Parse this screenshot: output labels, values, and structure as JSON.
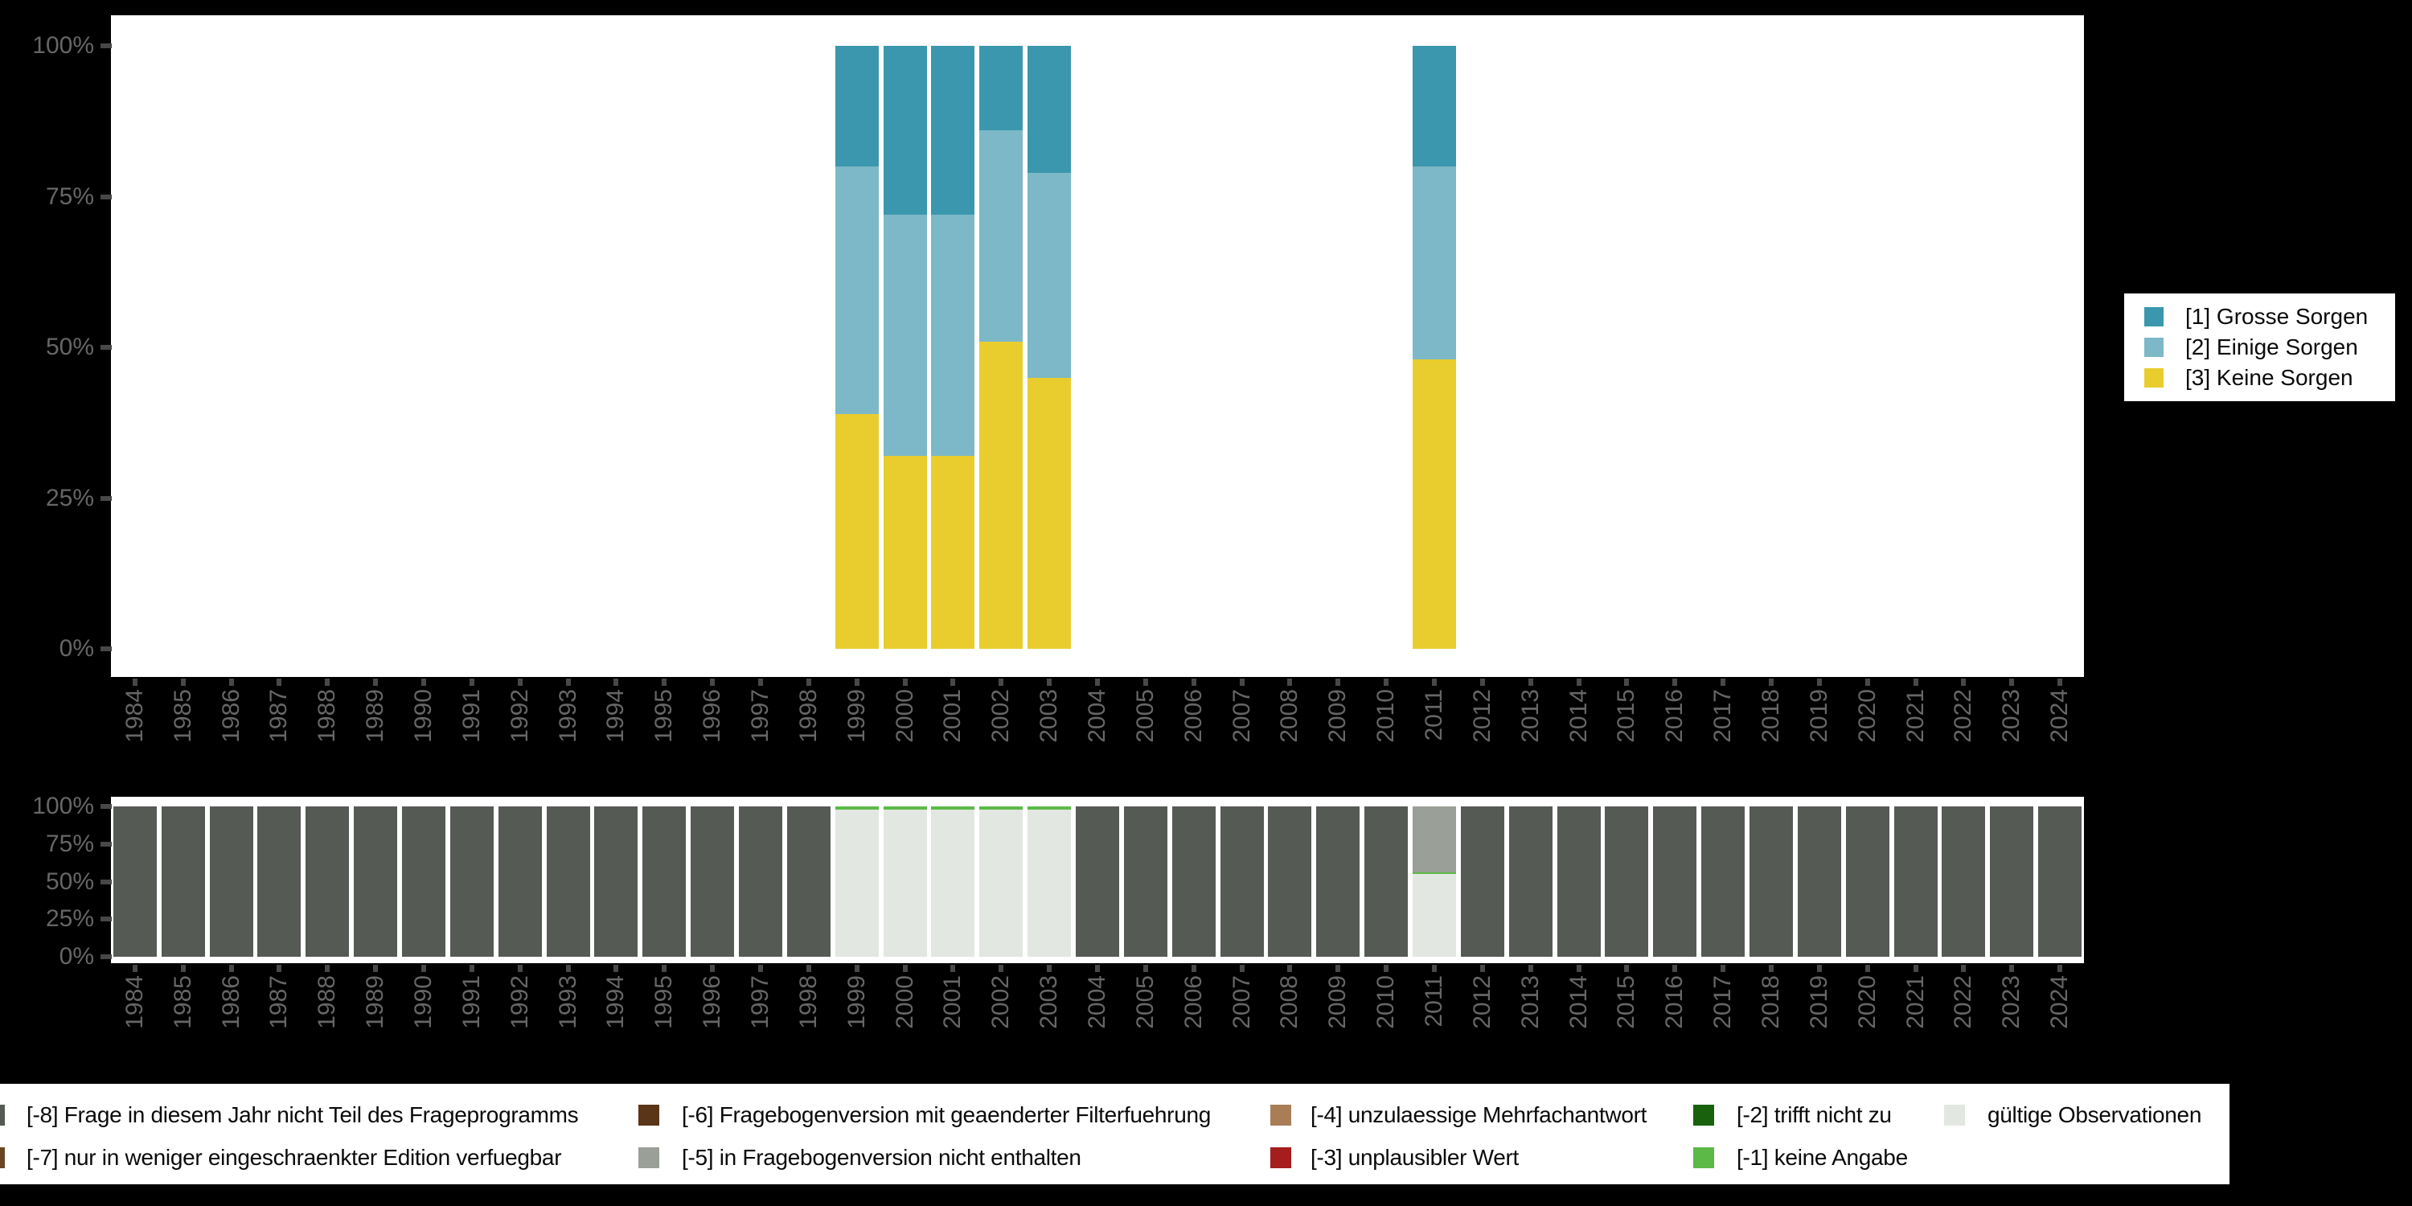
{
  "figure": {
    "background": "#000000",
    "panel_background": "#ffffff",
    "axis_text_color": "#666666",
    "tick_color": "#484848"
  },
  "colors": {
    "cat1_grosse_sorgen": "#3a97ad",
    "cat2_einige_sorgen": "#7cb8c7",
    "cat3_keine_sorgen": "#e9cd2e",
    "m8": "#555a55",
    "m7": "#6b4423",
    "m6": "#5a3517",
    "m5": "#9a9f98",
    "m4": "#a97e57",
    "m3": "#a51d1d",
    "m2": "#19610d",
    "m1": "#5cb948",
    "valid": "#e3e7e1"
  },
  "top_legend": {
    "items": [
      {
        "label": "[1] Grosse Sorgen",
        "color": "#3a97ad"
      },
      {
        "label": "[2] Einige Sorgen",
        "color": "#7cb8c7"
      },
      {
        "label": "[3] Keine Sorgen",
        "color": "#e9cd2e"
      }
    ]
  },
  "bottom_legend": {
    "items": [
      {
        "label": "[-8] Frage in diesem Jahr nicht Teil des Frageprogramms",
        "color": "#555a55",
        "col": 0,
        "row": 0
      },
      {
        "label": "[-7] nur in weniger eingeschraenkter Edition verfuegbar",
        "color": "#6b4423",
        "col": 0,
        "row": 1
      },
      {
        "label": "[-6] Fragebogenversion mit geaenderter Filterfuehrung",
        "color": "#5a3517",
        "col": 1,
        "row": 0
      },
      {
        "label": "[-5] in Fragebogenversion nicht enthalten",
        "color": "#9a9f98",
        "col": 1,
        "row": 1
      },
      {
        "label": "[-4] unzulaessige Mehrfachantwort",
        "color": "#a97e57",
        "col": 2,
        "row": 0
      },
      {
        "label": "[-3] unplausibler Wert",
        "color": "#a51d1d",
        "col": 2,
        "row": 1
      },
      {
        "label": "[-2] trifft nicht zu",
        "color": "#19610d",
        "col": 3,
        "row": 0
      },
      {
        "label": "[-1] keine Angabe",
        "color": "#5cb948",
        "col": 3,
        "row": 1
      },
      {
        "label": "gültige Observationen",
        "color": "#e3e7e1",
        "col": 4,
        "row": 0
      }
    ]
  },
  "chart_data": [
    {
      "id": "answer-categories",
      "type": "bar",
      "stacked": true,
      "unit": "percent",
      "ylim": [
        0,
        100
      ],
      "grid": false,
      "legend_position": "right",
      "y_tick_labels": [
        "100%",
        "75%",
        "50%",
        "25%",
        "0%"
      ],
      "categories": [
        "1984",
        "1985",
        "1986",
        "1987",
        "1988",
        "1989",
        "1990",
        "1991",
        "1992",
        "1993",
        "1994",
        "1995",
        "1996",
        "1997",
        "1998",
        "1999",
        "2000",
        "2001",
        "2002",
        "2003",
        "2004",
        "2005",
        "2006",
        "2007",
        "2008",
        "2009",
        "2010",
        "2011",
        "2012",
        "2013",
        "2014",
        "2015",
        "2016",
        "2017",
        "2018",
        "2019",
        "2020",
        "2021",
        "2022",
        "2023",
        "2024"
      ],
      "series": [
        {
          "name": "[1] Grosse Sorgen",
          "color": "#3a97ad",
          "values": {
            "1999": 20,
            "2000": 28,
            "2001": 28,
            "2002": 14,
            "2003": 21,
            "2011": 20
          }
        },
        {
          "name": "[2] Einige Sorgen",
          "color": "#7cb8c7",
          "values": {
            "1999": 41,
            "2000": 40,
            "2001": 40,
            "2002": 35,
            "2003": 34,
            "2011": 32
          }
        },
        {
          "name": "[3] Keine Sorgen",
          "color": "#e9cd2e",
          "values": {
            "1999": 39,
            "2000": 32,
            "2001": 32,
            "2002": 51,
            "2003": 45,
            "2011": 48
          }
        }
      ]
    },
    {
      "id": "missing-codes",
      "type": "bar",
      "stacked": true,
      "unit": "percent",
      "ylim": [
        0,
        100
      ],
      "grid": false,
      "legend_position": "bottom",
      "y_tick_labels": [
        "100%",
        "75%",
        "50%",
        "25%",
        "0%"
      ],
      "categories": [
        "1984",
        "1985",
        "1986",
        "1987",
        "1988",
        "1989",
        "1990",
        "1991",
        "1992",
        "1993",
        "1994",
        "1995",
        "1996",
        "1997",
        "1998",
        "1999",
        "2000",
        "2001",
        "2002",
        "2003",
        "2004",
        "2005",
        "2006",
        "2007",
        "2008",
        "2009",
        "2010",
        "2011",
        "2012",
        "2013",
        "2014",
        "2015",
        "2016",
        "2017",
        "2018",
        "2019",
        "2020",
        "2021",
        "2022",
        "2023",
        "2024"
      ],
      "series": [
        {
          "name": "[-8] Frage in diesem Jahr nicht Teil des Frageprogramms",
          "color": "#555a55",
          "values": {
            "1984": 100,
            "1985": 100,
            "1986": 100,
            "1987": 100,
            "1988": 100,
            "1989": 100,
            "1990": 100,
            "1991": 100,
            "1992": 100,
            "1993": 100,
            "1994": 100,
            "1995": 100,
            "1996": 100,
            "1997": 100,
            "1998": 100,
            "2004": 100,
            "2005": 100,
            "2006": 100,
            "2007": 100,
            "2008": 100,
            "2009": 100,
            "2010": 100,
            "2012": 100,
            "2013": 100,
            "2014": 100,
            "2015": 100,
            "2016": 100,
            "2017": 100,
            "2018": 100,
            "2019": 100,
            "2020": 100,
            "2021": 100,
            "2022": 100,
            "2023": 100,
            "2024": 100
          }
        },
        {
          "name": "[-5] in Fragebogenversion nicht enthalten",
          "color": "#9a9f98",
          "values": {
            "2011": 44
          }
        },
        {
          "name": "[-1] keine Angabe",
          "color": "#5cb948",
          "values": {
            "1999": 2,
            "2000": 2,
            "2001": 2,
            "2002": 2,
            "2003": 2,
            "2011": 1
          }
        },
        {
          "name": "gültige Observationen",
          "color": "#e3e7e1",
          "values": {
            "1999": 98,
            "2000": 98,
            "2001": 98,
            "2002": 98,
            "2003": 98,
            "2011": 55
          }
        }
      ]
    }
  ]
}
